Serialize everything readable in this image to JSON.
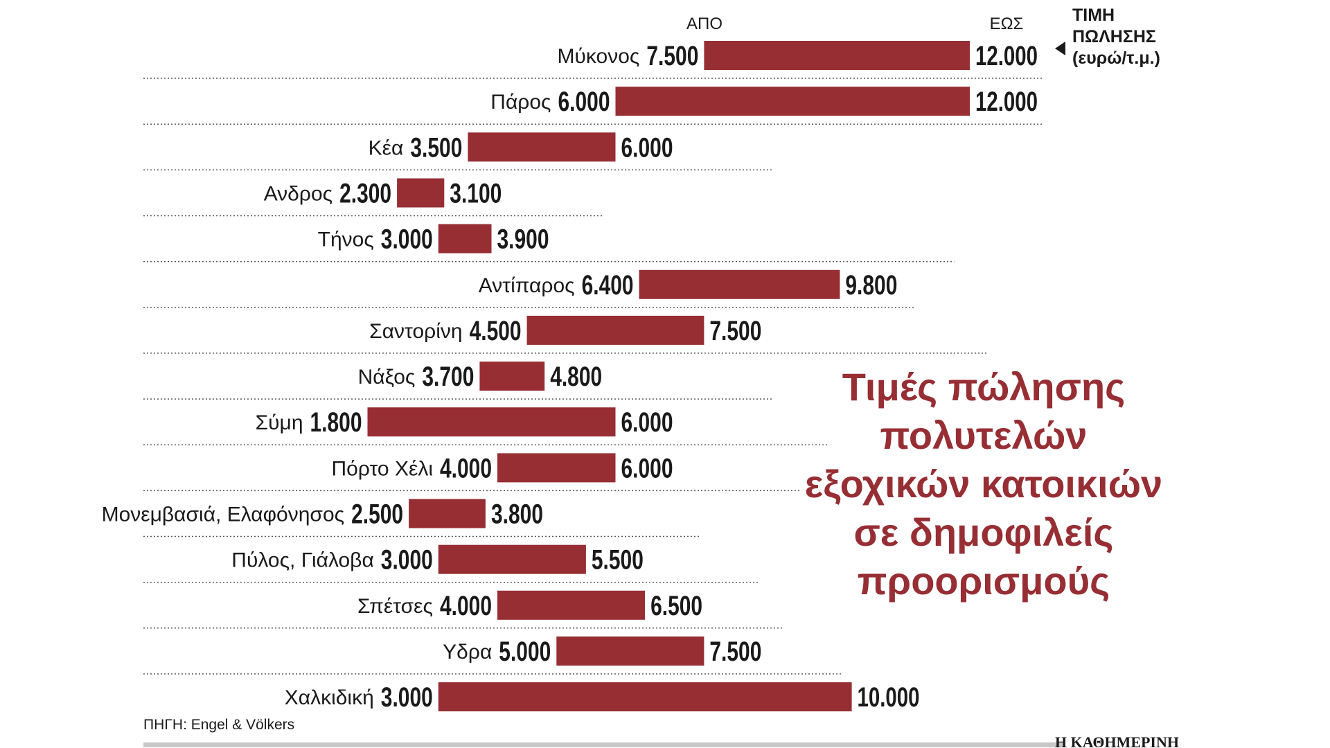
{
  "header": {
    "from_label": "ΑΠΟ",
    "to_label": "ΕΩΣ",
    "unit_lines": [
      "ΤΙΜΗ",
      "ΠΩΛΗΣΗΣ",
      "(ευρώ/τ.μ.)"
    ]
  },
  "headline_lines": [
    "Τιμές πώλησης",
    "πολυτελών",
    "εξοχικών κατοικιών",
    "σε δημοφιλείς",
    "προορισμούς"
  ],
  "source": "ΠΗΓΗ: Engel & Völkers",
  "brand": "Η ΚΑΘΗΜΕΡΙΝΗ",
  "colors": {
    "bar": "#962e34",
    "headline": "#962e34"
  },
  "chart_data": {
    "type": "bar",
    "orientation": "horizontal-range",
    "categories": [
      "Μύκονος",
      "Πάρος",
      "Κέα",
      "Ανδρος",
      "Τήνος",
      "Αντίπαρος",
      "Σαντορίνη",
      "Νάξος",
      "Σύμη",
      "Πόρτο Χέλι",
      "Μονεμβασιά, Ελαφόνησος",
      "Πύλος, Γιάλοβα",
      "Σπέτσες",
      "Υδρα",
      "Χαλκιδική"
    ],
    "series": [
      {
        "name": "ΑΠΟ",
        "values": [
          7500,
          6000,
          3500,
          2300,
          3000,
          6400,
          4500,
          3700,
          1800,
          4000,
          2500,
          3000,
          4000,
          5000,
          3000
        ]
      },
      {
        "name": "ΕΩΣ",
        "values": [
          12000,
          12000,
          6000,
          3100,
          3900,
          9800,
          7500,
          4800,
          6000,
          6000,
          3800,
          5500,
          6500,
          7500,
          10000
        ]
      }
    ],
    "from_labels": [
      "7.500",
      "6.000",
      "3.500",
      "2.300",
      "3.000",
      "6.400",
      "4.500",
      "3.700",
      "1.800",
      "4.000",
      "2.500",
      "3.000",
      "4.000",
      "5.000",
      "3.000"
    ],
    "to_labels": [
      "12.000",
      "12.000",
      "6.000",
      "3.100",
      "3.900",
      "9.800",
      "7.500",
      "4.800",
      "6.000",
      "6.000",
      "3.800",
      "5.500",
      "6.500",
      "7.500",
      "10.000"
    ],
    "xlim": [
      0,
      12000
    ],
    "grid": false,
    "legend": "none"
  }
}
